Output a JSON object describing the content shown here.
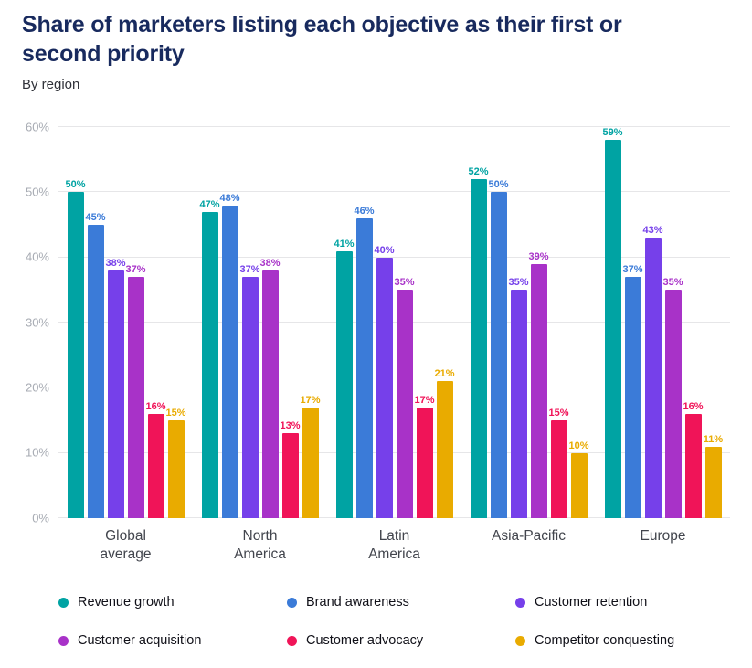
{
  "header": {
    "title": "Share of marketers listing each objective as their first or second priority",
    "subtitle": "By region"
  },
  "chart_data": {
    "type": "bar",
    "title": "Share of marketers listing each objective as their first or second priority",
    "subtitle": "By region",
    "categories": [
      "Global average",
      "North America",
      "Latin America",
      "Asia-Pacific",
      "Europe"
    ],
    "tick_labels": [
      "Global\naverage",
      "North\nAmerica",
      "Latin\nAmerica",
      "Asia-Pacific",
      "Europe"
    ],
    "series": [
      {
        "name": "Revenue growth",
        "color": "#00a3a3",
        "values": [
          50,
          47,
          41,
          52,
          59
        ]
      },
      {
        "name": "Brand awareness",
        "color": "#3b7bd8",
        "values": [
          45,
          48,
          46,
          50,
          37
        ]
      },
      {
        "name": "Customer retention",
        "color": "#7640ea",
        "values": [
          38,
          37,
          40,
          35,
          43
        ]
      },
      {
        "name": "Customer acquisition",
        "color": "#a832c8",
        "values": [
          37,
          38,
          35,
          39,
          35
        ]
      },
      {
        "name": "Customer advocacy",
        "color": "#f01458",
        "values": [
          16,
          13,
          17,
          15,
          16
        ]
      },
      {
        "name": "Competitor conquesting",
        "color": "#e9ab00",
        "values": [
          15,
          17,
          21,
          10,
          11
        ]
      }
    ],
    "value_suffix": "%",
    "ylim": [
      0,
      60
    ],
    "yticks": [
      0,
      10,
      20,
      30,
      40,
      50,
      60
    ],
    "ytick_suffix": "%",
    "grid": true,
    "legend_position": "bottom"
  }
}
